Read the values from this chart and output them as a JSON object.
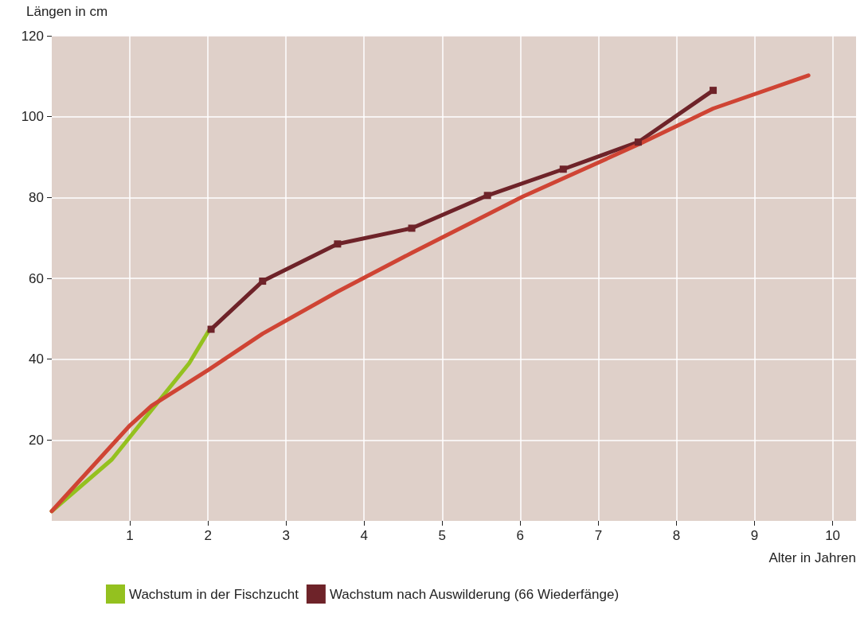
{
  "chart_data": {
    "type": "line",
    "xlabel": "Alter in Jahren",
    "ylabel": "Längen in cm",
    "xlim": [
      0,
      10.3
    ],
    "ylim": [
      0,
      120
    ],
    "xticks": [
      1,
      2,
      3,
      4,
      5,
      6,
      7,
      8,
      9,
      10
    ],
    "yticks": [
      20,
      40,
      60,
      80,
      100,
      120
    ],
    "grid": true,
    "legend": "bottom left",
    "line_style": "solid",
    "series": [
      {
        "name": "Wachstum in der Fischzucht",
        "color": "#94c11f",
        "marker": "none",
        "x": [
          0,
          0.77,
          1.76,
          2.01
        ],
        "values": [
          2.4,
          15.2,
          39,
          47
        ]
      },
      {
        "name": "Wachstum nach Auswilderung (66 Wiederfänge)",
        "color": "#6e2329",
        "marker": "square",
        "x": [
          2.04,
          2.7,
          3.66,
          4.61,
          5.58,
          6.55,
          7.51,
          8.47
        ],
        "values": [
          47.4,
          59.3,
          68.5,
          72.4,
          80.5,
          87,
          93.7,
          106.5
        ]
      },
      {
        "color": "#cf4434",
        "marker": "none",
        "x": [
          0,
          1,
          1.28,
          2.01,
          2.7,
          3.66,
          4.61,
          5.58,
          6.02,
          7.51,
          8.47,
          9.69
        ],
        "values": [
          2.4,
          23.6,
          28.5,
          37.4,
          46.3,
          56.7,
          66.3,
          75.8,
          80.1,
          93.1,
          102,
          110.2
        ]
      }
    ]
  }
}
